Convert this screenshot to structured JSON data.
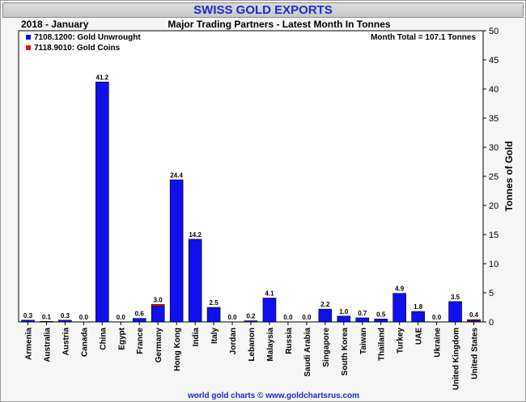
{
  "chart_data": {
    "type": "bar",
    "title": "SWISS GOLD EXPORTS",
    "period": "2018 - January",
    "subtitle": "Major Trading Partners - Latest Month In Tonnes",
    "month_total": "Month Total = 107.1 Tonnes",
    "ylabel": "Tonnes of Gold",
    "footer": "world gold charts © www.goldchartsrus.com",
    "ylim": [
      0,
      50
    ],
    "yticks": [
      0,
      5,
      10,
      15,
      20,
      25,
      30,
      35,
      40,
      45,
      50
    ],
    "legend_placement": "top-left",
    "categories": [
      "Armenia",
      "Australia",
      "Austria",
      "Canada",
      "China",
      "Egypt",
      "France",
      "Germany",
      "Hong Kong",
      "India",
      "Italy",
      "Jordan",
      "Lebanon",
      "Malaysia",
      "Russia",
      "Saudi Arabia",
      "Singapore",
      "South Korea",
      "Taiwan",
      "Thailand",
      "Turkey",
      "UAE",
      "Ukraine",
      "United Kingdom",
      "United States"
    ],
    "totals": [
      "0.3",
      "0.1",
      "0.3",
      "0.0",
      "41.2",
      "0.0",
      "0.6",
      "3.0",
      "24.4",
      "14.2",
      "2.5",
      "0.0",
      "0.2",
      "4.1",
      "0.0",
      "0.0",
      "2.2",
      "1.0",
      "0.7",
      "0.5",
      "4.9",
      "1.8",
      "0.0",
      "3.5",
      "0.4"
    ],
    "series": [
      {
        "name": "7108.1200: Gold Unwrought",
        "color": "#1010ee",
        "values": [
          0.3,
          0.1,
          0.3,
          0.0,
          41.2,
          0.0,
          0.6,
          2.7,
          24.4,
          14.2,
          2.5,
          0.0,
          0.2,
          4.1,
          0.0,
          0.0,
          2.2,
          1.0,
          0.7,
          0.5,
          4.9,
          1.8,
          0.0,
          3.5,
          0.2
        ]
      },
      {
        "name": "7118.9010: Gold Coins",
        "color": "#e81010",
        "values": [
          0.0,
          0.0,
          0.0,
          0.0,
          0.0,
          0.0,
          0.0,
          0.3,
          0.0,
          0.0,
          0.0,
          0.0,
          0.0,
          0.0,
          0.0,
          0.0,
          0.0,
          0.0,
          0.0,
          0.0,
          0.0,
          0.0,
          0.0,
          0.0,
          0.2
        ]
      }
    ],
    "grid": false
  }
}
